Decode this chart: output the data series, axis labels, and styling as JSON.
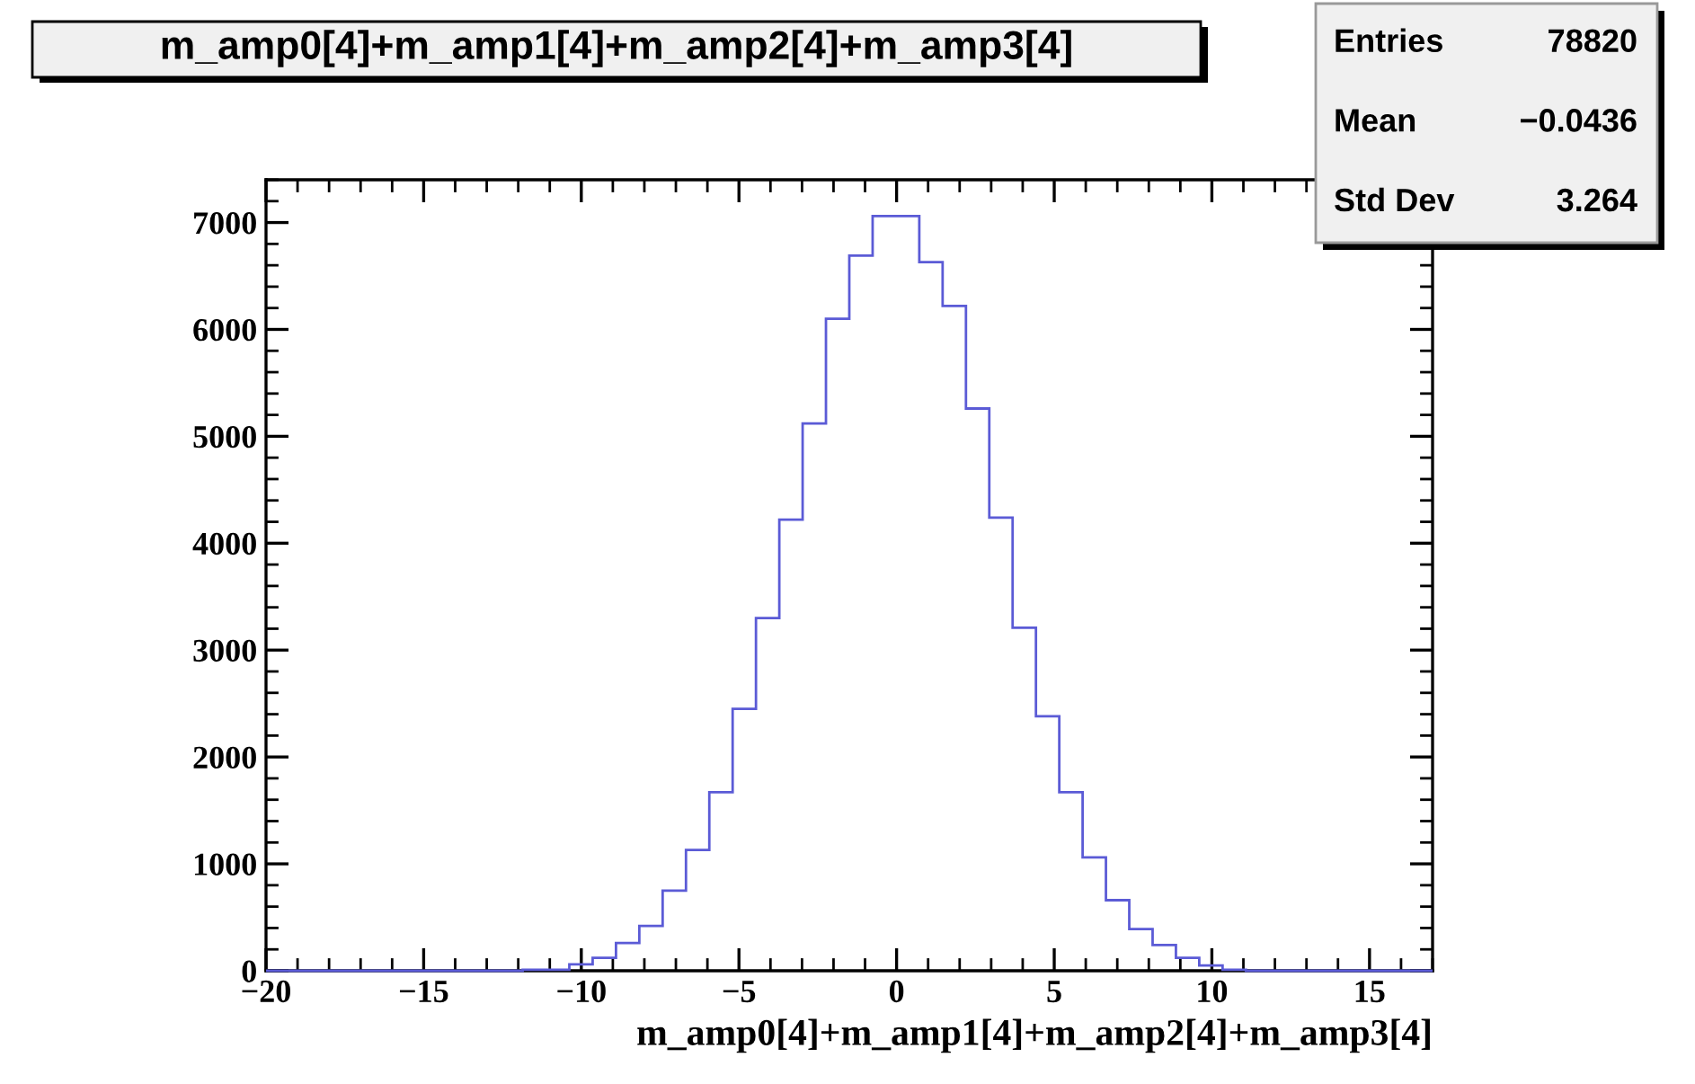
{
  "chart_data": {
    "type": "histogram",
    "title": "m_amp0[4]+m_amp1[4]+m_amp2[4]+m_amp3[4]",
    "xlabel": "m_amp0[4]+m_amp1[4]+m_amp2[4]+m_amp3[4]",
    "bins": [
      -20,
      -19.26,
      -18.52,
      -17.78,
      -17.04,
      -16.3,
      -15.56,
      -14.82,
      -14.08,
      -13.34,
      -12.6,
      -11.86,
      -11.12,
      -10.38,
      -9.64,
      -8.9,
      -8.16,
      -7.42,
      -6.68,
      -5.94,
      -5.2,
      -4.46,
      -3.72,
      -2.98,
      -2.24,
      -1.5,
      -0.76,
      -0.02,
      0.72,
      1.46,
      2.2,
      2.94,
      3.68,
      4.42,
      5.16,
      5.9,
      6.64,
      7.38,
      8.12,
      8.86,
      9.6,
      10.34,
      11.08,
      11.82,
      12.56,
      13.3,
      14.04,
      14.78,
      15.52,
      16.26,
      17
    ],
    "values": [
      0,
      0,
      0,
      0,
      0,
      0,
      0,
      0,
      0,
      0,
      0,
      10,
      10,
      60,
      120,
      260,
      420,
      750,
      1130,
      1670,
      2450,
      3300,
      4220,
      5120,
      6100,
      6690,
      7060,
      7060,
      6630,
      6220,
      5260,
      4240,
      3210,
      2380,
      1670,
      1060,
      660,
      390,
      240,
      120,
      50,
      10,
      0,
      0,
      0,
      0,
      0,
      0,
      0,
      0
    ],
    "color": "#5b5bd6",
    "xlim": [
      -20,
      17
    ],
    "xticks": [
      {
        "value": -20,
        "label": "−20"
      },
      {
        "value": -15,
        "label": "−15"
      },
      {
        "value": -10,
        "label": "−10"
      },
      {
        "value": -5,
        "label": "−5"
      },
      0,
      5,
      10,
      15
    ],
    "ylim": [
      0,
      7400
    ],
    "yticks": [
      0,
      1000,
      2000,
      3000,
      4000,
      5000,
      6000,
      7000
    ],
    "annotations": [
      "Entries",
      "78820",
      "Mean",
      "−0.0436",
      "Std Dev",
      "3.264"
    ],
    "grid": false
  }
}
